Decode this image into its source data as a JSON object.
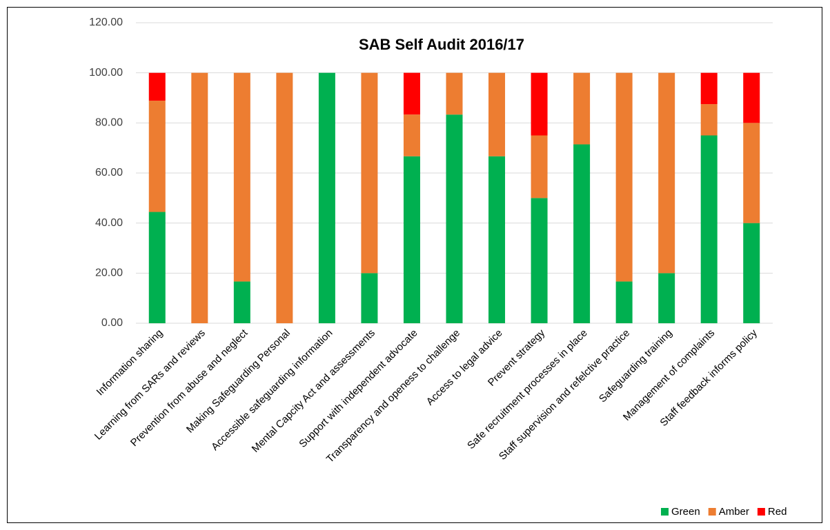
{
  "chart_data": {
    "type": "stacked_bar",
    "title": "SAB Self Audit 2016/17",
    "categories": [
      "Information sharing",
      "Learning from SARs and reviews",
      "Prevention from abuse and neglect",
      "Making Safeguarding Personal",
      "Accessible safeguarding information",
      "Mental Capcity Act and assessments",
      "Support with independent advocate",
      "Transparency and openess to challenge",
      "Access to legal advice",
      "Prevent strategy",
      "Safe recruitment processes in place",
      "Staff supervision and refelctive practice",
      "Safeguarding training",
      "Management of complaints",
      "Staff feedback informs policy"
    ],
    "series": [
      {
        "name": "Green",
        "color": "#00b050",
        "values": [
          44.44,
          0,
          16.67,
          0,
          100,
          20,
          66.67,
          83.33,
          66.67,
          50,
          71.43,
          16.67,
          20,
          75,
          40
        ]
      },
      {
        "name": "Amber",
        "color": "#ed7d31",
        "values": [
          44.44,
          100,
          83.33,
          100,
          0,
          80,
          16.67,
          16.67,
          33.33,
          25,
          28.57,
          83.33,
          80,
          12.5,
          40
        ]
      },
      {
        "name": "Red",
        "color": "#ff0000",
        "values": [
          11.11,
          0,
          0,
          0,
          0,
          0,
          16.67,
          0,
          0,
          25,
          0,
          0,
          0,
          12.5,
          20
        ]
      }
    ],
    "ylim": [
      0,
      120
    ],
    "yticks": [
      {
        "value": 0,
        "label": "0.00"
      },
      {
        "value": 20,
        "label": "20.00"
      },
      {
        "value": 40,
        "label": "40.00"
      },
      {
        "value": 60,
        "label": "60.00"
      },
      {
        "value": 80,
        "label": "80.00"
      },
      {
        "value": 100,
        "label": "100.00"
      },
      {
        "value": 120,
        "label": "120.00"
      }
    ],
    "grid": true,
    "legend": "bottom-right"
  }
}
